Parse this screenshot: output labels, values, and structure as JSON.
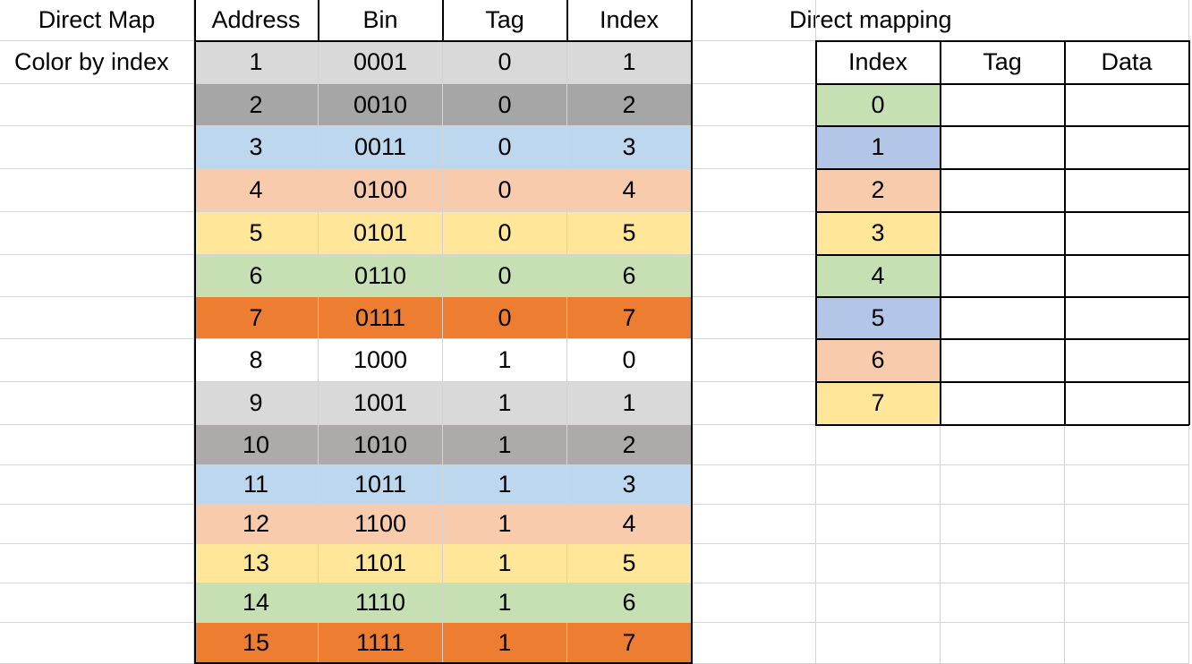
{
  "sheet": {
    "direct_map_title": "Direct Map",
    "color_by_index_label": "Color by index",
    "direct_mapping_title": "Direct mapping"
  },
  "address_table": {
    "headers": [
      "Address",
      "Bin",
      "Tag",
      "Index"
    ],
    "rows": [
      {
        "address": "1",
        "bin": "0001",
        "tag": "0",
        "index": "1",
        "color": "#d9d9d9"
      },
      {
        "address": "2",
        "bin": "0010",
        "tag": "0",
        "index": "2",
        "color": "#a6a6a6"
      },
      {
        "address": "3",
        "bin": "0011",
        "tag": "0",
        "index": "3",
        "color": "#bdd7ee"
      },
      {
        "address": "4",
        "bin": "0100",
        "tag": "0",
        "index": "4",
        "color": "#f8cbad"
      },
      {
        "address": "5",
        "bin": "0101",
        "tag": "0",
        "index": "5",
        "color": "#ffe699"
      },
      {
        "address": "6",
        "bin": "0110",
        "tag": "0",
        "index": "6",
        "color": "#c6e0b4"
      },
      {
        "address": "7",
        "bin": "0111",
        "tag": "0",
        "index": "7",
        "color": "#ed7d31"
      },
      {
        "address": "8",
        "bin": "1000",
        "tag": "1",
        "index": "0",
        "color": "#ffffff"
      },
      {
        "address": "9",
        "bin": "1001",
        "tag": "1",
        "index": "1",
        "color": "#d9d9d9"
      },
      {
        "address": "10",
        "bin": "1010",
        "tag": "1",
        "index": "2",
        "color": "#aeaaaa"
      },
      {
        "address": "11",
        "bin": "1011",
        "tag": "1",
        "index": "3",
        "color": "#bdd7ee"
      },
      {
        "address": "12",
        "bin": "1100",
        "tag": "1",
        "index": "4",
        "color": "#f8cbad"
      },
      {
        "address": "13",
        "bin": "1101",
        "tag": "1",
        "index": "5",
        "color": "#ffe699"
      },
      {
        "address": "14",
        "bin": "1110",
        "tag": "1",
        "index": "6",
        "color": "#c6e0b4"
      },
      {
        "address": "15",
        "bin": "1111",
        "tag": "1",
        "index": "7",
        "color": "#ed7d31"
      }
    ]
  },
  "cache_table": {
    "headers": [
      "Index",
      "Tag",
      "Data"
    ],
    "rows": [
      {
        "index": "0",
        "tag": "",
        "data": "",
        "color": "#c6e0b4"
      },
      {
        "index": "1",
        "tag": "",
        "data": "",
        "color": "#b4c6e7"
      },
      {
        "index": "2",
        "tag": "",
        "data": "",
        "color": "#f8cbad"
      },
      {
        "index": "3",
        "tag": "",
        "data": "",
        "color": "#ffe699"
      },
      {
        "index": "4",
        "tag": "",
        "data": "",
        "color": "#c6e0b4"
      },
      {
        "index": "5",
        "tag": "",
        "data": "",
        "color": "#b4c6e7"
      },
      {
        "index": "6",
        "tag": "",
        "data": "",
        "color": "#f8cbad"
      },
      {
        "index": "7",
        "tag": "",
        "data": "",
        "color": "#ffe699"
      }
    ]
  },
  "colors": {
    "gridline": "#d4d4d4",
    "border": "#000000",
    "background": "#ffffff"
  }
}
